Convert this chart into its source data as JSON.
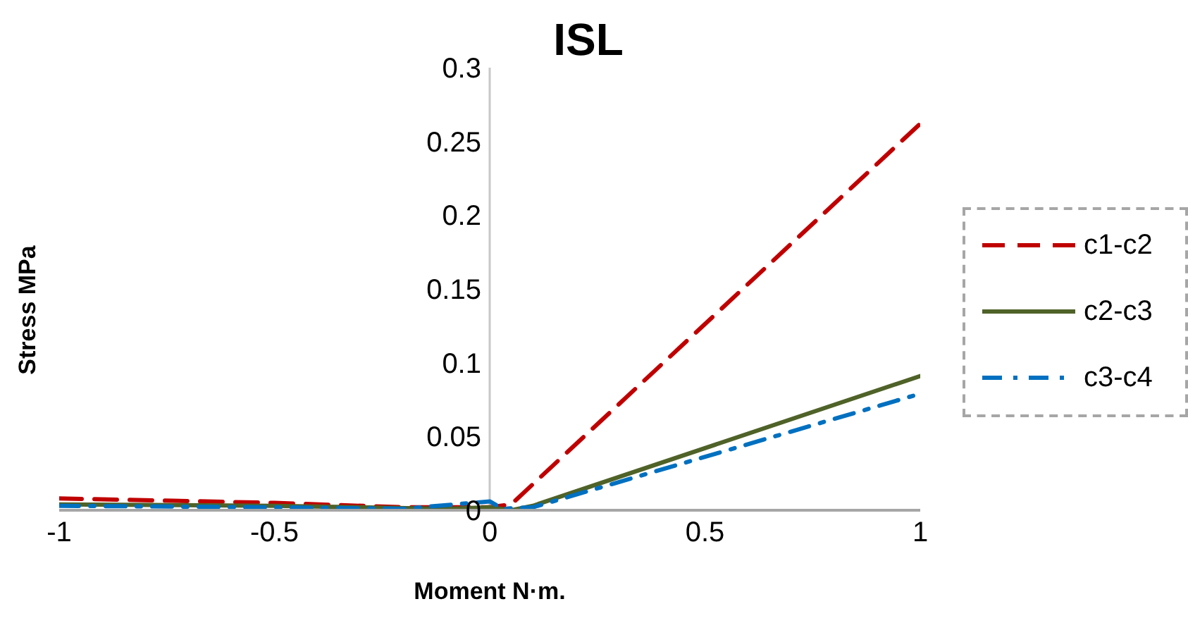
{
  "chart_data": {
    "type": "line",
    "title": "ISL",
    "xlabel": "Moment N·m.",
    "ylabel": "Stress MPa",
    "xlim": [
      -1,
      1
    ],
    "xticks": [
      -1,
      -0.5,
      0,
      0.5,
      1
    ],
    "ylim": [
      0,
      0.3
    ],
    "yticks": [
      0,
      0.05,
      0.1,
      0.15,
      0.2,
      0.25,
      0.3
    ],
    "grid": false,
    "legend": "right",
    "marker": "none",
    "series": [
      {
        "name": "c1-c2",
        "color": "#c00000",
        "line_style": "dashed",
        "x": [
          -1,
          -0.5,
          -0.2,
          0,
          0.05,
          1
        ],
        "values": [
          0.008,
          0.005,
          0.002,
          0.002,
          0.004,
          0.262
        ]
      },
      {
        "name": "c2-c3",
        "color": "#4f6228",
        "line_style": "solid",
        "x": [
          -1,
          -0.5,
          -0.1,
          0,
          0.05,
          0.1,
          1
        ],
        "values": [
          0.004,
          0.003,
          0.001,
          0.002,
          0.0,
          0.003,
          0.091
        ]
      },
      {
        "name": "c3-c4",
        "color": "#0070c0",
        "line_style": "dashdot",
        "x": [
          -1,
          -0.5,
          -0.2,
          0,
          0.03,
          0.1,
          1
        ],
        "values": [
          0.003,
          0.002,
          0.001,
          0.006,
          0.001,
          0.002,
          0.079
        ]
      }
    ]
  }
}
